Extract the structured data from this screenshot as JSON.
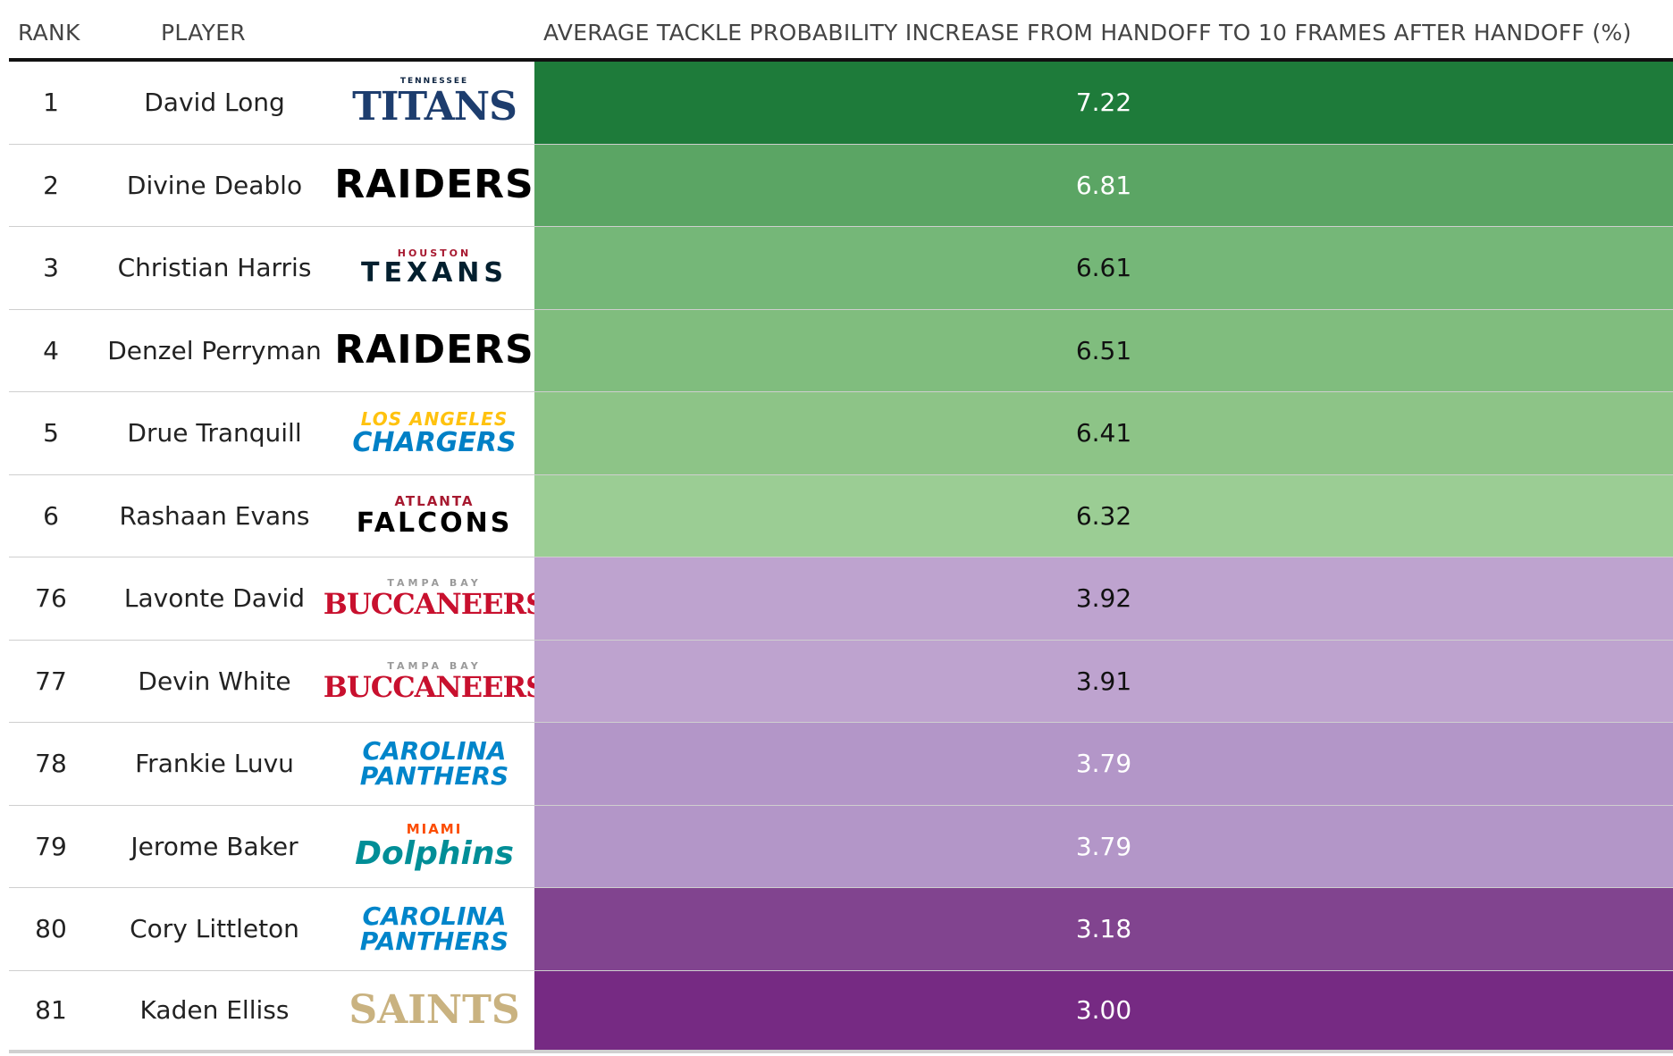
{
  "headers": {
    "rank": "RANK",
    "player": "PLAYER",
    "metric": "AVERAGE TACKLE PROBABILITY INCREASE FROM HANDOFF TO 10 FRAMES AFTER HANDOFF (%)"
  },
  "chart_data": {
    "type": "table",
    "columns": [
      "RANK",
      "PLAYER",
      "",
      "AVERAGE TACKLE PROBABILITY INCREASE FROM HANDOFF TO 10 FRAMES AFTER HANDOFF (%)"
    ],
    "rows": [
      {
        "rank": "1",
        "player": "David Long",
        "logo_small": "TENNESSEE",
        "logo_big": "TITANS",
        "logo_style": "titans",
        "value": "7.22",
        "bg": "#1e7b3a",
        "fg": "#ffffff"
      },
      {
        "rank": "2",
        "player": "Divine Deablo",
        "logo_small": "",
        "logo_big": "RAIDERS",
        "logo_style": "raiders",
        "value": "6.81",
        "bg": "#5ba564",
        "fg": "#ffffff"
      },
      {
        "rank": "3",
        "player": "Christian Harris",
        "logo_small": "HOUSTON",
        "logo_big": "TEXANS",
        "logo_style": "texans",
        "value": "6.61",
        "bg": "#75b778",
        "fg": "#111111"
      },
      {
        "rank": "4",
        "player": "Denzel Perryman",
        "logo_small": "",
        "logo_big": "RAIDERS",
        "logo_style": "raiders",
        "value": "6.51",
        "bg": "#80bd7e",
        "fg": "#111111"
      },
      {
        "rank": "5",
        "player": "Drue Tranquill",
        "logo_small": "LOS ANGELES",
        "logo_big": "CHARGERS",
        "logo_style": "chargers",
        "value": "6.41",
        "bg": "#8dc487",
        "fg": "#111111"
      },
      {
        "rank": "6",
        "player": "Rashaan Evans",
        "logo_small": "ATLANTA",
        "logo_big": "FALCONS",
        "logo_style": "falcons",
        "value": "6.32",
        "bg": "#9bcd94",
        "fg": "#111111"
      },
      {
        "rank": "76",
        "player": "Lavonte David",
        "logo_small": "TAMPA BAY",
        "logo_big": "BUCCANEERS",
        "logo_style": "bucs",
        "value": "3.92",
        "bg": "#bea3cf",
        "fg": "#111111"
      },
      {
        "rank": "77",
        "player": "Devin White",
        "logo_small": "TAMPA BAY",
        "logo_big": "BUCCANEERS",
        "logo_style": "bucs",
        "value": "3.91",
        "bg": "#bea3cf",
        "fg": "#111111"
      },
      {
        "rank": "78",
        "player": "Frankie Luvu",
        "logo_small": "",
        "logo_big": "CAROLINA PANTHERS",
        "logo_style": "panthers",
        "value": "3.79",
        "bg": "#b396c8",
        "fg": "#ffffff"
      },
      {
        "rank": "79",
        "player": "Jerome Baker",
        "logo_small": "MIAMI",
        "logo_big": "Dolphins",
        "logo_style": "dolphins",
        "value": "3.79",
        "bg": "#b396c8",
        "fg": "#ffffff"
      },
      {
        "rank": "80",
        "player": "Cory Littleton",
        "logo_small": "",
        "logo_big": "CAROLINA PANTHERS",
        "logo_style": "panthers",
        "value": "3.18",
        "bg": "#81448f",
        "fg": "#ffffff"
      },
      {
        "rank": "81",
        "player": "Kaden Elliss",
        "logo_small": "",
        "logo_big": "SAINTS",
        "logo_style": "saints",
        "value": "3.00",
        "bg": "#762a83",
        "fg": "#ffffff"
      }
    ]
  }
}
